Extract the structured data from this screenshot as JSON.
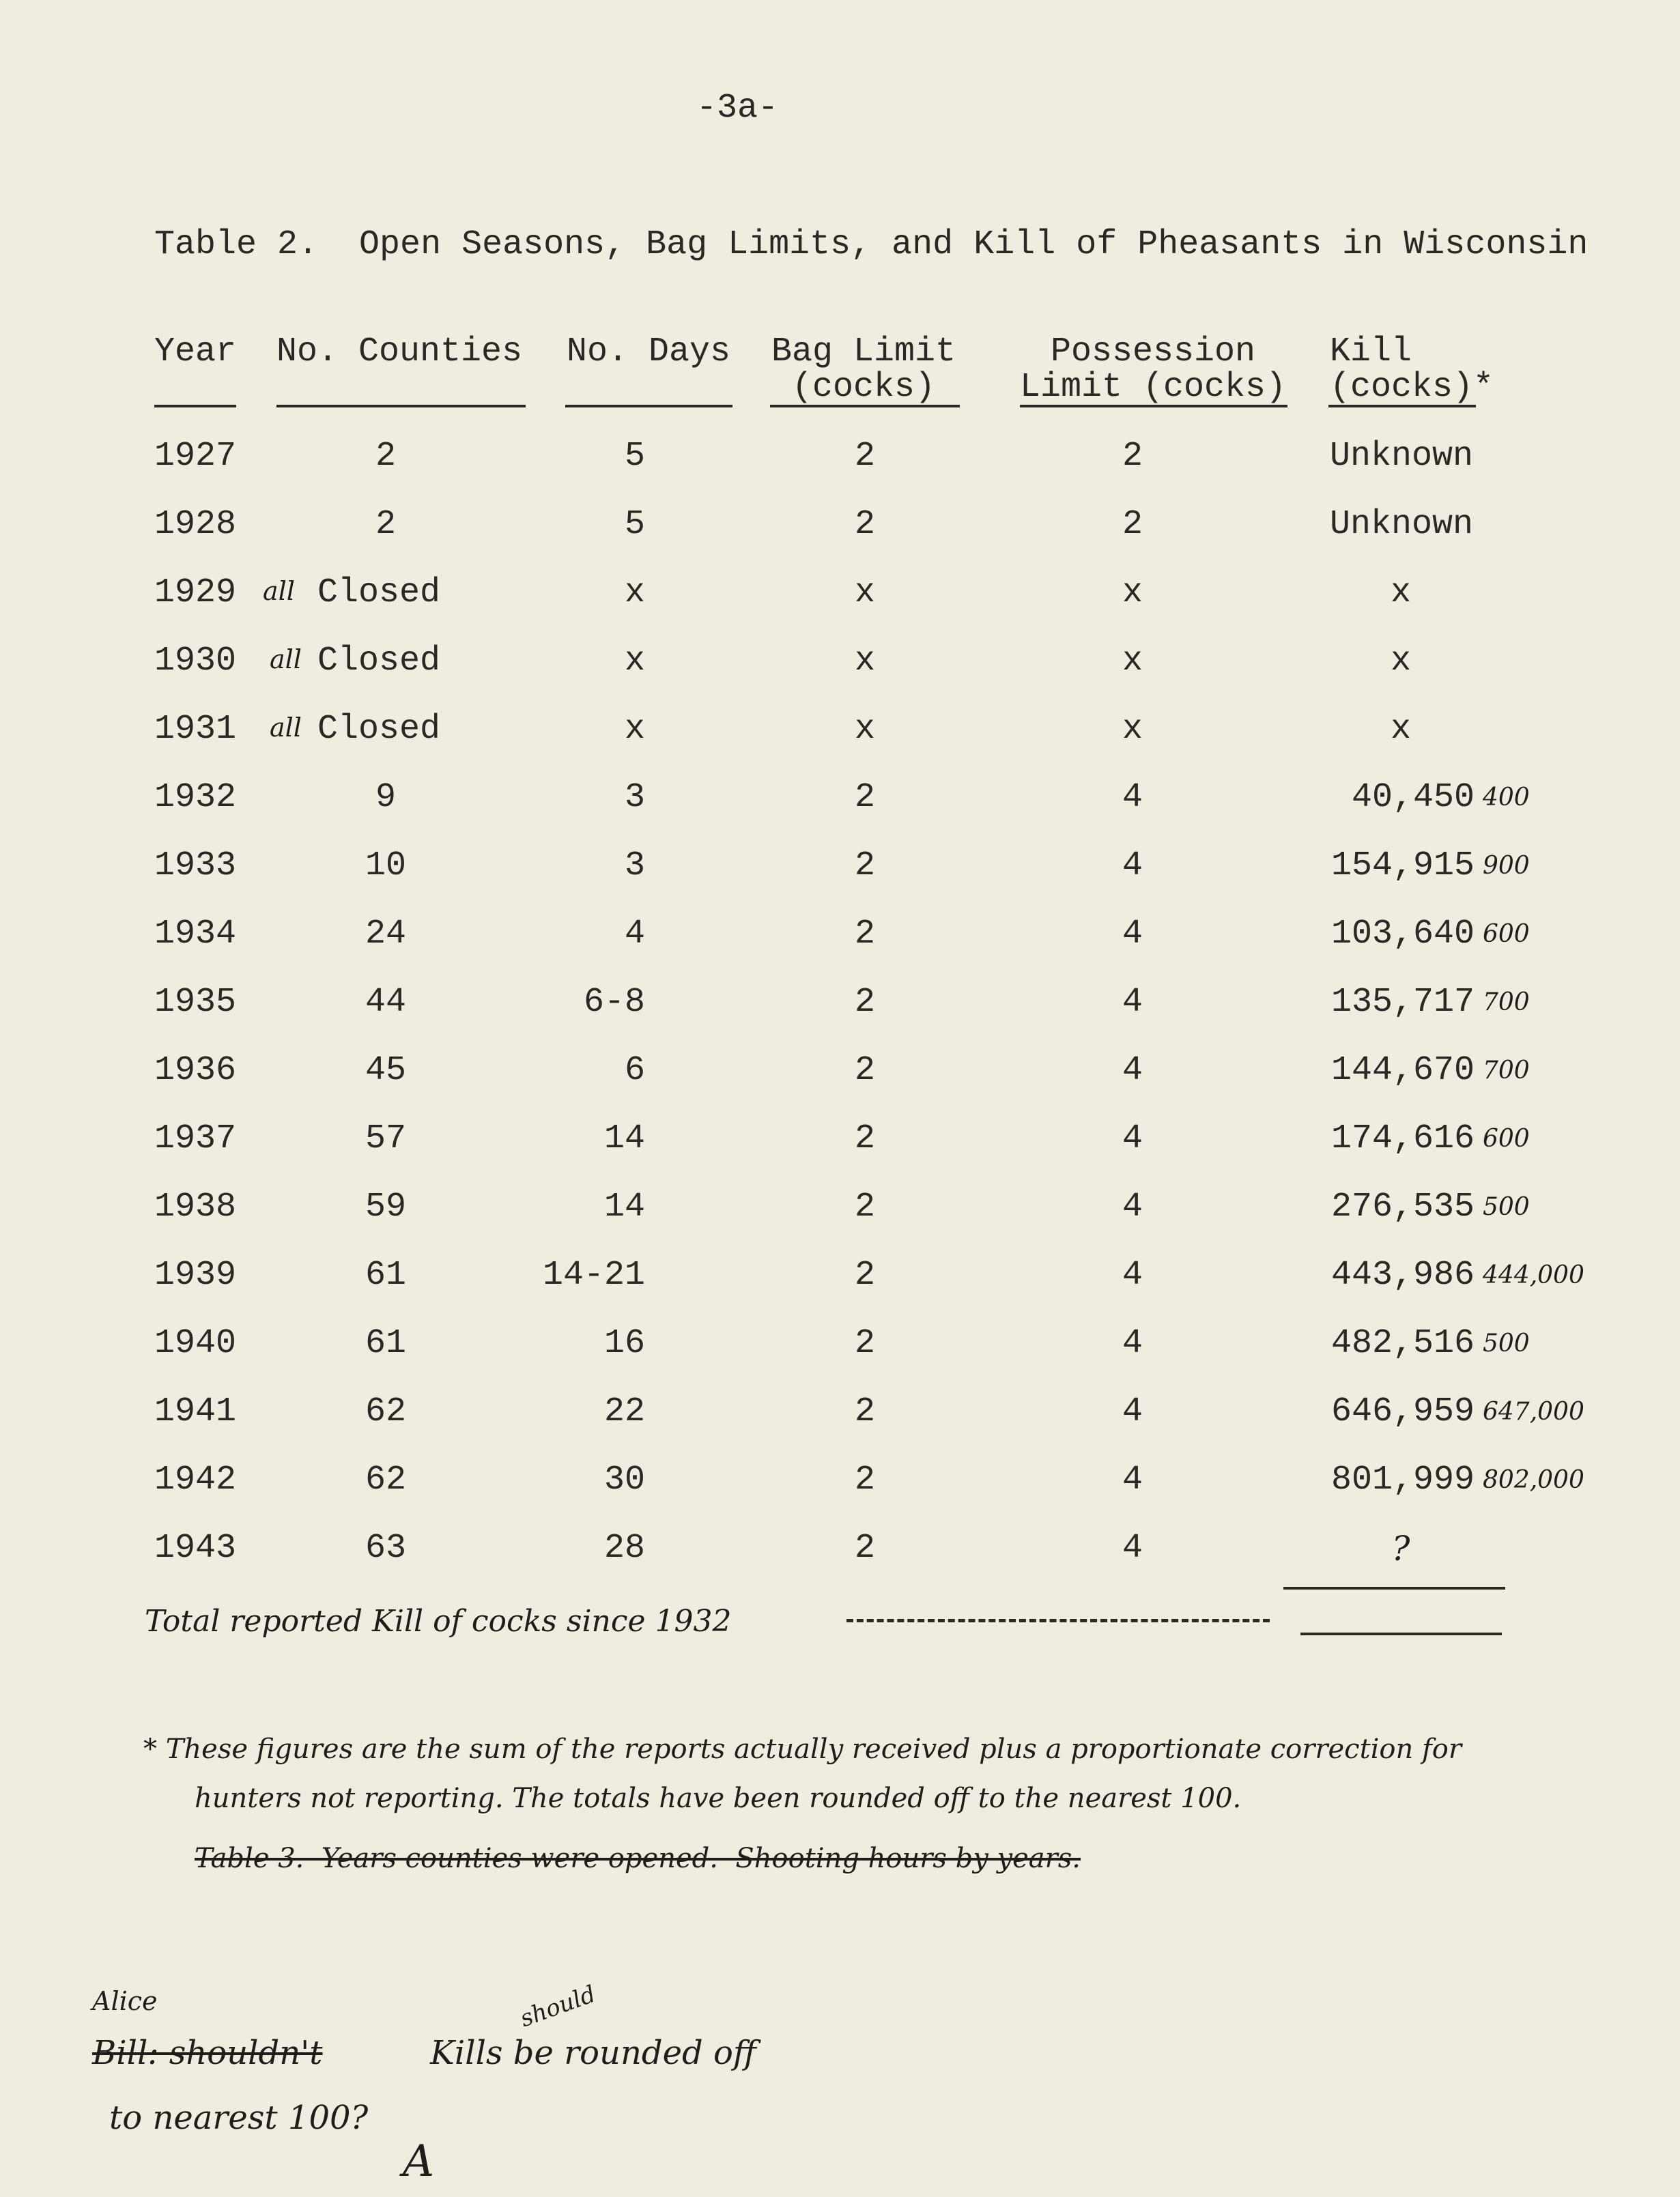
{
  "page_number": "-3a-",
  "title": "Table 2.  Open Seasons, Bag Limits, and Kill of Pheasants in Wisconsin",
  "headers": {
    "year": "Year",
    "counties": "No. Counties",
    "days": "No. Days",
    "bag_limit": [
      "Bag Limit",
      "(cocks)"
    ],
    "possession_limit": [
      "Possession",
      "Limit (cocks)"
    ],
    "kill": [
      "Kill",
      "(cocks)*"
    ]
  },
  "rows": [
    {
      "year": "1927",
      "counties": "2",
      "days": "5",
      "bag": "2",
      "possession": "2",
      "kill": "Unknown",
      "note": ""
    },
    {
      "year": "1928",
      "counties": "2",
      "days": "5",
      "bag": "2",
      "possession": "2",
      "kill": "Unknown",
      "note": ""
    },
    {
      "year": "1929",
      "prefix": "all",
      "counties": "Closed",
      "days": "x",
      "bag": "x",
      "possession": "x",
      "kill": "x",
      "note": ""
    },
    {
      "year": "1930",
      "prefix": "all",
      "counties": "Closed",
      "days": "x",
      "bag": "x",
      "possession": "x",
      "kill": "x",
      "note": ""
    },
    {
      "year": "1931",
      "prefix": "all",
      "counties": "Closed",
      "days": "x",
      "bag": "x",
      "possession": "x",
      "kill": "x",
      "note": ""
    },
    {
      "year": "1932",
      "counties": "9",
      "days": "3",
      "bag": "2",
      "possession": "4",
      "kill": "40,450",
      "note": "400"
    },
    {
      "year": "1933",
      "counties": "10",
      "days": "3",
      "bag": "2",
      "possession": "4",
      "kill": "154,915",
      "note": "900"
    },
    {
      "year": "1934",
      "counties": "24",
      "days": "4",
      "bag": "2",
      "possession": "4",
      "kill": "103,640",
      "note": "600"
    },
    {
      "year": "1935",
      "counties": "44",
      "days": "6-8",
      "bag": "2",
      "possession": "4",
      "kill": "135,717",
      "note": "700"
    },
    {
      "year": "1936",
      "counties": "45",
      "days": "6",
      "bag": "2",
      "possession": "4",
      "kill": "144,670",
      "note": "700"
    },
    {
      "year": "1937",
      "counties": "57",
      "days": "14",
      "bag": "2",
      "possession": "4",
      "kill": "174,616",
      "note": "600"
    },
    {
      "year": "1938",
      "counties": "59",
      "days": "14",
      "bag": "2",
      "possession": "4",
      "kill": "276,535",
      "note": "500"
    },
    {
      "year": "1939",
      "counties": "61",
      "days": "14-21",
      "bag": "2",
      "possession": "4",
      "kill": "443,986",
      "note": "444,000"
    },
    {
      "year": "1940",
      "counties": "61",
      "days": "16",
      "bag": "2",
      "possession": "4",
      "kill": "482,516",
      "note": "500"
    },
    {
      "year": "1941",
      "counties": "62",
      "days": "22",
      "bag": "2",
      "possession": "4",
      "kill": "646,959",
      "note": "647,000"
    },
    {
      "year": "1942",
      "counties": "62",
      "days": "30",
      "bag": "2",
      "possession": "4",
      "kill": "801,999",
      "note": "802,000"
    },
    {
      "year": "1943",
      "counties": "63",
      "days": "28",
      "bag": "2",
      "possession": "4",
      "kill": "?",
      "note": ""
    }
  ],
  "total_label": "Total reported Kill of cocks since 1932",
  "footnote": {
    "line1": "* These figures are the sum of the reports actually received plus a proportionate correction for",
    "line2": "hunters not reporting. The totals have been rounded off to the nearest 100.",
    "struck": "Table 3.  Years counties were opened.  Shooting hours by years."
  },
  "bottom_note": {
    "insert_name": "Alice",
    "struck": "Bill: shouldn't",
    "text": "Kills be rounded off",
    "insert_word": "should",
    "line2": "to nearest 100?",
    "initials": "A"
  }
}
